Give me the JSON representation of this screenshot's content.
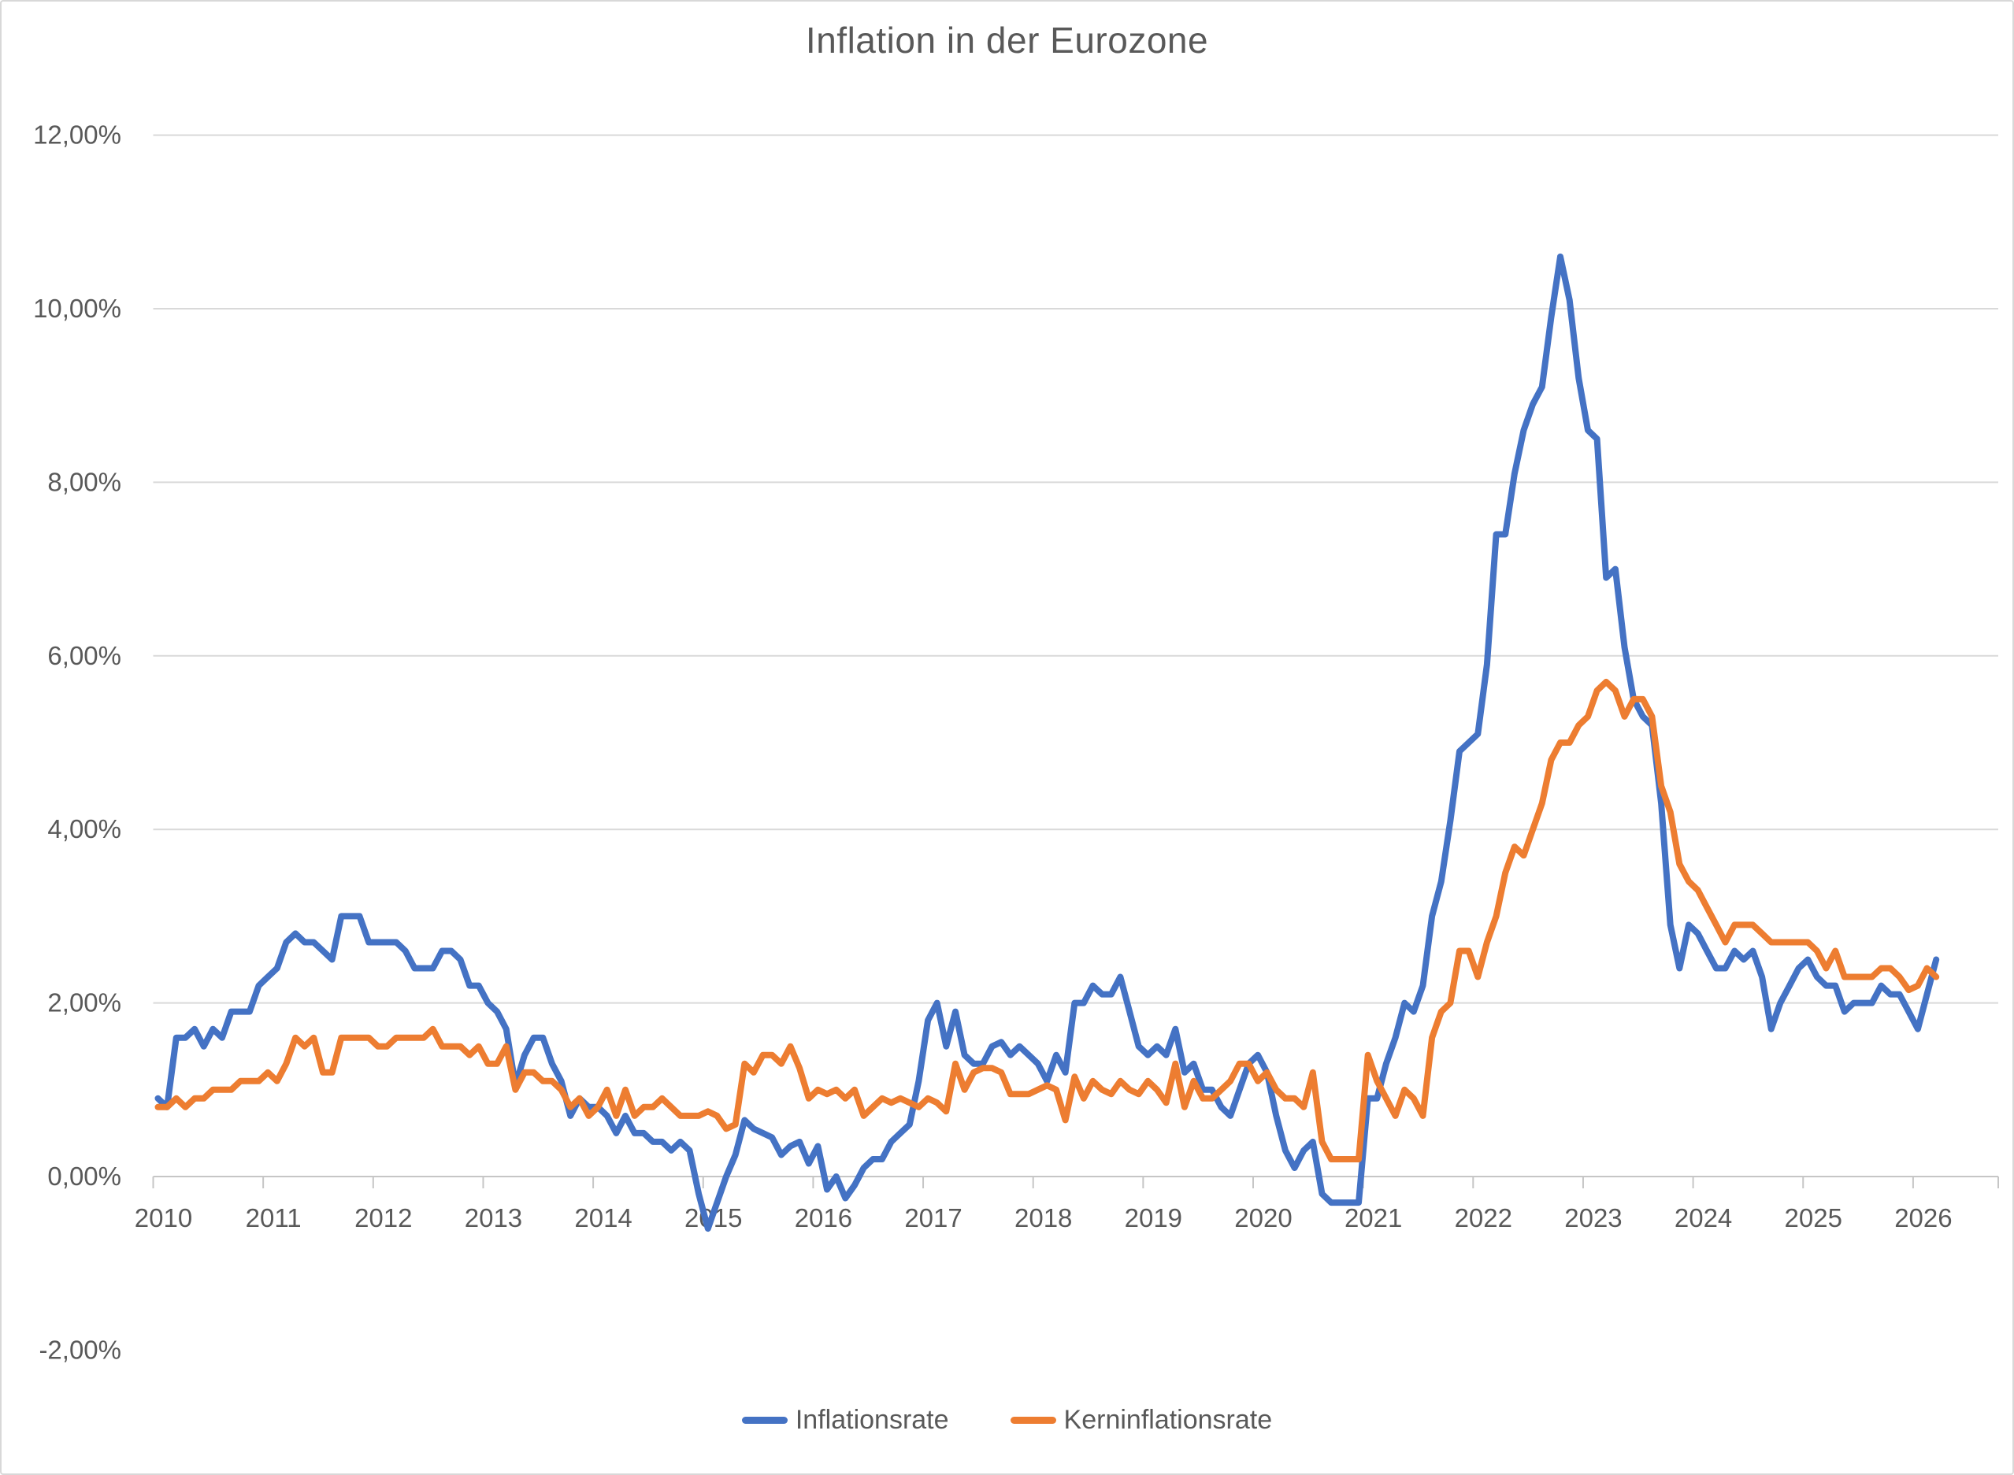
{
  "title": "Inflation in der Eurozone",
  "colors": {
    "series_blue": "#4472C4",
    "series_orange": "#ED7D31",
    "gridline": "#D9D9D9",
    "axis_line": "#C6C6C6",
    "text": "#595959",
    "background": "#FFFFFF",
    "frame_border": "#D8D8D8"
  },
  "chart_data": {
    "type": "line",
    "title": "Inflation in der Eurozone",
    "frequency": "monthly",
    "x_range_start": "2010-01",
    "x_range_end": "2026-03",
    "x_tick_labels": [
      "2010",
      "2011",
      "2012",
      "2013",
      "2014",
      "2015",
      "2016",
      "2017",
      "2018",
      "2019",
      "2020",
      "2021",
      "2022",
      "2023",
      "2024",
      "2025",
      "2026"
    ],
    "y_tick_labels": [
      "12,00%",
      "10,00%",
      "8,00%",
      "6,00%",
      "4,00%",
      "2,00%",
      "0,00%",
      "-2,00%"
    ],
    "y_tick_values": [
      12,
      10,
      8,
      6,
      4,
      2,
      0,
      -2
    ],
    "ylim": [
      -2,
      12
    ],
    "grid": true,
    "legend_position": "bottom",
    "series": [
      {
        "name": "Inflationsrate",
        "color": "#4472C4",
        "values": [
          0.9,
          0.8,
          1.6,
          1.6,
          1.7,
          1.5,
          1.7,
          1.6,
          1.9,
          1.9,
          1.9,
          2.2,
          2.3,
          2.4,
          2.7,
          2.8,
          2.7,
          2.7,
          2.6,
          2.5,
          3.0,
          3.0,
          3.0,
          2.7,
          2.7,
          2.7,
          2.7,
          2.6,
          2.4,
          2.4,
          2.4,
          2.6,
          2.6,
          2.5,
          2.2,
          2.2,
          2.0,
          1.9,
          1.7,
          1.05,
          1.4,
          1.6,
          1.6,
          1.3,
          1.1,
          0.7,
          0.9,
          0.8,
          0.8,
          0.7,
          0.5,
          0.7,
          0.5,
          0.5,
          0.4,
          0.4,
          0.3,
          0.4,
          0.3,
          -0.2,
          -0.6,
          -0.3,
          0.0,
          0.25,
          0.65,
          0.55,
          0.5,
          0.45,
          0.25,
          0.35,
          0.4,
          0.15,
          0.35,
          -0.15,
          0.0,
          -0.25,
          -0.1,
          0.1,
          0.2,
          0.2,
          0.4,
          0.5,
          0.6,
          1.1,
          1.8,
          2.0,
          1.5,
          1.9,
          1.4,
          1.3,
          1.3,
          1.5,
          1.55,
          1.4,
          1.5,
          1.4,
          1.3,
          1.1,
          1.4,
          1.2,
          2.0,
          2.0,
          2.2,
          2.1,
          2.1,
          2.3,
          1.9,
          1.5,
          1.4,
          1.5,
          1.4,
          1.7,
          1.2,
          1.3,
          1.0,
          1.0,
          0.8,
          0.7,
          1.0,
          1.3,
          1.4,
          1.2,
          0.7,
          0.3,
          0.1,
          0.3,
          0.4,
          -0.2,
          -0.3,
          -0.3,
          -0.3,
          -0.3,
          0.9,
          0.9,
          1.3,
          1.6,
          2.0,
          1.9,
          2.2,
          3.0,
          3.4,
          4.1,
          4.9,
          5.0,
          5.1,
          5.9,
          7.4,
          7.4,
          8.1,
          8.6,
          8.9,
          9.1,
          9.9,
          10.6,
          10.1,
          9.2,
          8.6,
          8.5,
          6.9,
          7.0,
          6.1,
          5.5,
          5.3,
          5.2,
          4.3,
          2.9,
          2.4,
          2.9,
          2.8,
          2.6,
          2.4,
          2.4,
          2.6,
          2.5,
          2.6,
          2.3,
          1.7,
          2.0,
          2.2,
          2.4,
          2.5,
          2.3,
          2.2,
          2.2,
          1.9,
          2.0,
          2.0,
          2.0,
          2.2,
          2.1,
          2.1,
          1.9,
          1.7,
          2.1,
          2.5
        ]
      },
      {
        "name": "Kerninflationsrate",
        "color": "#ED7D31",
        "values": [
          0.8,
          0.8,
          0.9,
          0.8,
          0.9,
          0.9,
          1.0,
          1.0,
          1.0,
          1.1,
          1.1,
          1.1,
          1.2,
          1.1,
          1.3,
          1.6,
          1.5,
          1.6,
          1.2,
          1.2,
          1.6,
          1.6,
          1.6,
          1.6,
          1.5,
          1.5,
          1.6,
          1.6,
          1.6,
          1.6,
          1.7,
          1.5,
          1.5,
          1.5,
          1.4,
          1.5,
          1.3,
          1.3,
          1.5,
          1.0,
          1.2,
          1.2,
          1.1,
          1.1,
          1.0,
          0.8,
          0.9,
          0.7,
          0.8,
          1.0,
          0.7,
          1.0,
          0.7,
          0.8,
          0.8,
          0.9,
          0.8,
          0.7,
          0.7,
          0.7,
          0.75,
          0.7,
          0.55,
          0.6,
          1.3,
          1.2,
          1.4,
          1.4,
          1.3,
          1.5,
          1.25,
          0.9,
          1.0,
          0.95,
          1.0,
          0.9,
          1.0,
          0.7,
          0.8,
          0.9,
          0.85,
          0.9,
          0.85,
          0.8,
          0.9,
          0.85,
          0.75,
          1.3,
          1.0,
          1.2,
          1.25,
          1.25,
          1.2,
          0.95,
          0.95,
          0.95,
          1.0,
          1.05,
          1.0,
          0.65,
          1.15,
          0.9,
          1.1,
          1.0,
          0.95,
          1.1,
          1.0,
          0.95,
          1.1,
          1.0,
          0.85,
          1.3,
          0.8,
          1.1,
          0.9,
          0.9,
          1.0,
          1.1,
          1.3,
          1.3,
          1.1,
          1.2,
          1.0,
          0.9,
          0.9,
          0.8,
          1.2,
          0.4,
          0.2,
          0.2,
          0.2,
          0.2,
          1.4,
          1.1,
          0.9,
          0.7,
          1.0,
          0.9,
          0.7,
          1.6,
          1.9,
          2.0,
          2.6,
          2.6,
          2.3,
          2.7,
          3.0,
          3.5,
          3.8,
          3.7,
          4.0,
          4.3,
          4.8,
          5.0,
          5.0,
          5.2,
          5.3,
          5.6,
          5.7,
          5.6,
          5.3,
          5.5,
          5.5,
          5.3,
          4.5,
          4.2,
          3.6,
          3.4,
          3.3,
          3.1,
          2.9,
          2.7,
          2.9,
          2.9,
          2.9,
          2.8,
          2.7,
          2.7,
          2.7,
          2.7,
          2.7,
          2.6,
          2.4,
          2.6,
          2.3,
          2.3,
          2.3,
          2.3,
          2.4,
          2.4,
          2.3,
          2.15,
          2.2,
          2.4,
          2.3
        ]
      }
    ]
  },
  "legend": {
    "items": [
      {
        "label": "Inflationsrate",
        "color": "#4472C4"
      },
      {
        "label": "Kerninflationsrate",
        "color": "#ED7D31"
      }
    ]
  }
}
